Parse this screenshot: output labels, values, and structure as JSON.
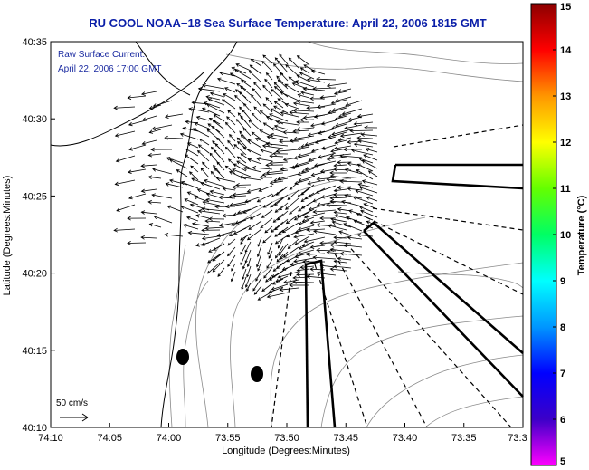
{
  "title": "RU COOL  NOAA−18  Sea Surface Temperature:  April 22, 2006 1815 GMT",
  "annotation": {
    "line1": "Raw Surface Current:",
    "line2": "April 22, 2006 17:00 GMT"
  },
  "scale_label": "50 cm/s",
  "chart_data": {
    "type": "vector-field map",
    "xlabel": "Longitude (Degrees:Minutes)",
    "ylabel": "Latitude (Degrees:Minutes)",
    "x_ticks": [
      "74:10",
      "74:05",
      "74:00",
      "73:55",
      "73:50",
      "73:45",
      "73:40",
      "73:35",
      "73:3"
    ],
    "y_ticks": [
      "40:35",
      "40:30",
      "40:25",
      "40:20",
      "40:15",
      "40:10"
    ],
    "xlim_minutes_west": [
      10,
      27
    ],
    "ylim_minutes_north": [
      10,
      35
    ],
    "colorbar": {
      "label": "Temperature (°C)",
      "range": [
        5,
        15
      ],
      "ticks": [
        "15",
        "14",
        "13",
        "12",
        "11",
        "10",
        "9",
        "8",
        "7",
        "6",
        "5"
      ],
      "colormap": [
        "#ff00ff",
        "#3c00c8",
        "#0000ff",
        "#0096ff",
        "#00ffff",
        "#00ff64",
        "#64ff00",
        "#ffff00",
        "#ff9600",
        "#ff0000",
        "#8c0000"
      ]
    },
    "grid": false,
    "scale_vector_cm_s": 50
  }
}
